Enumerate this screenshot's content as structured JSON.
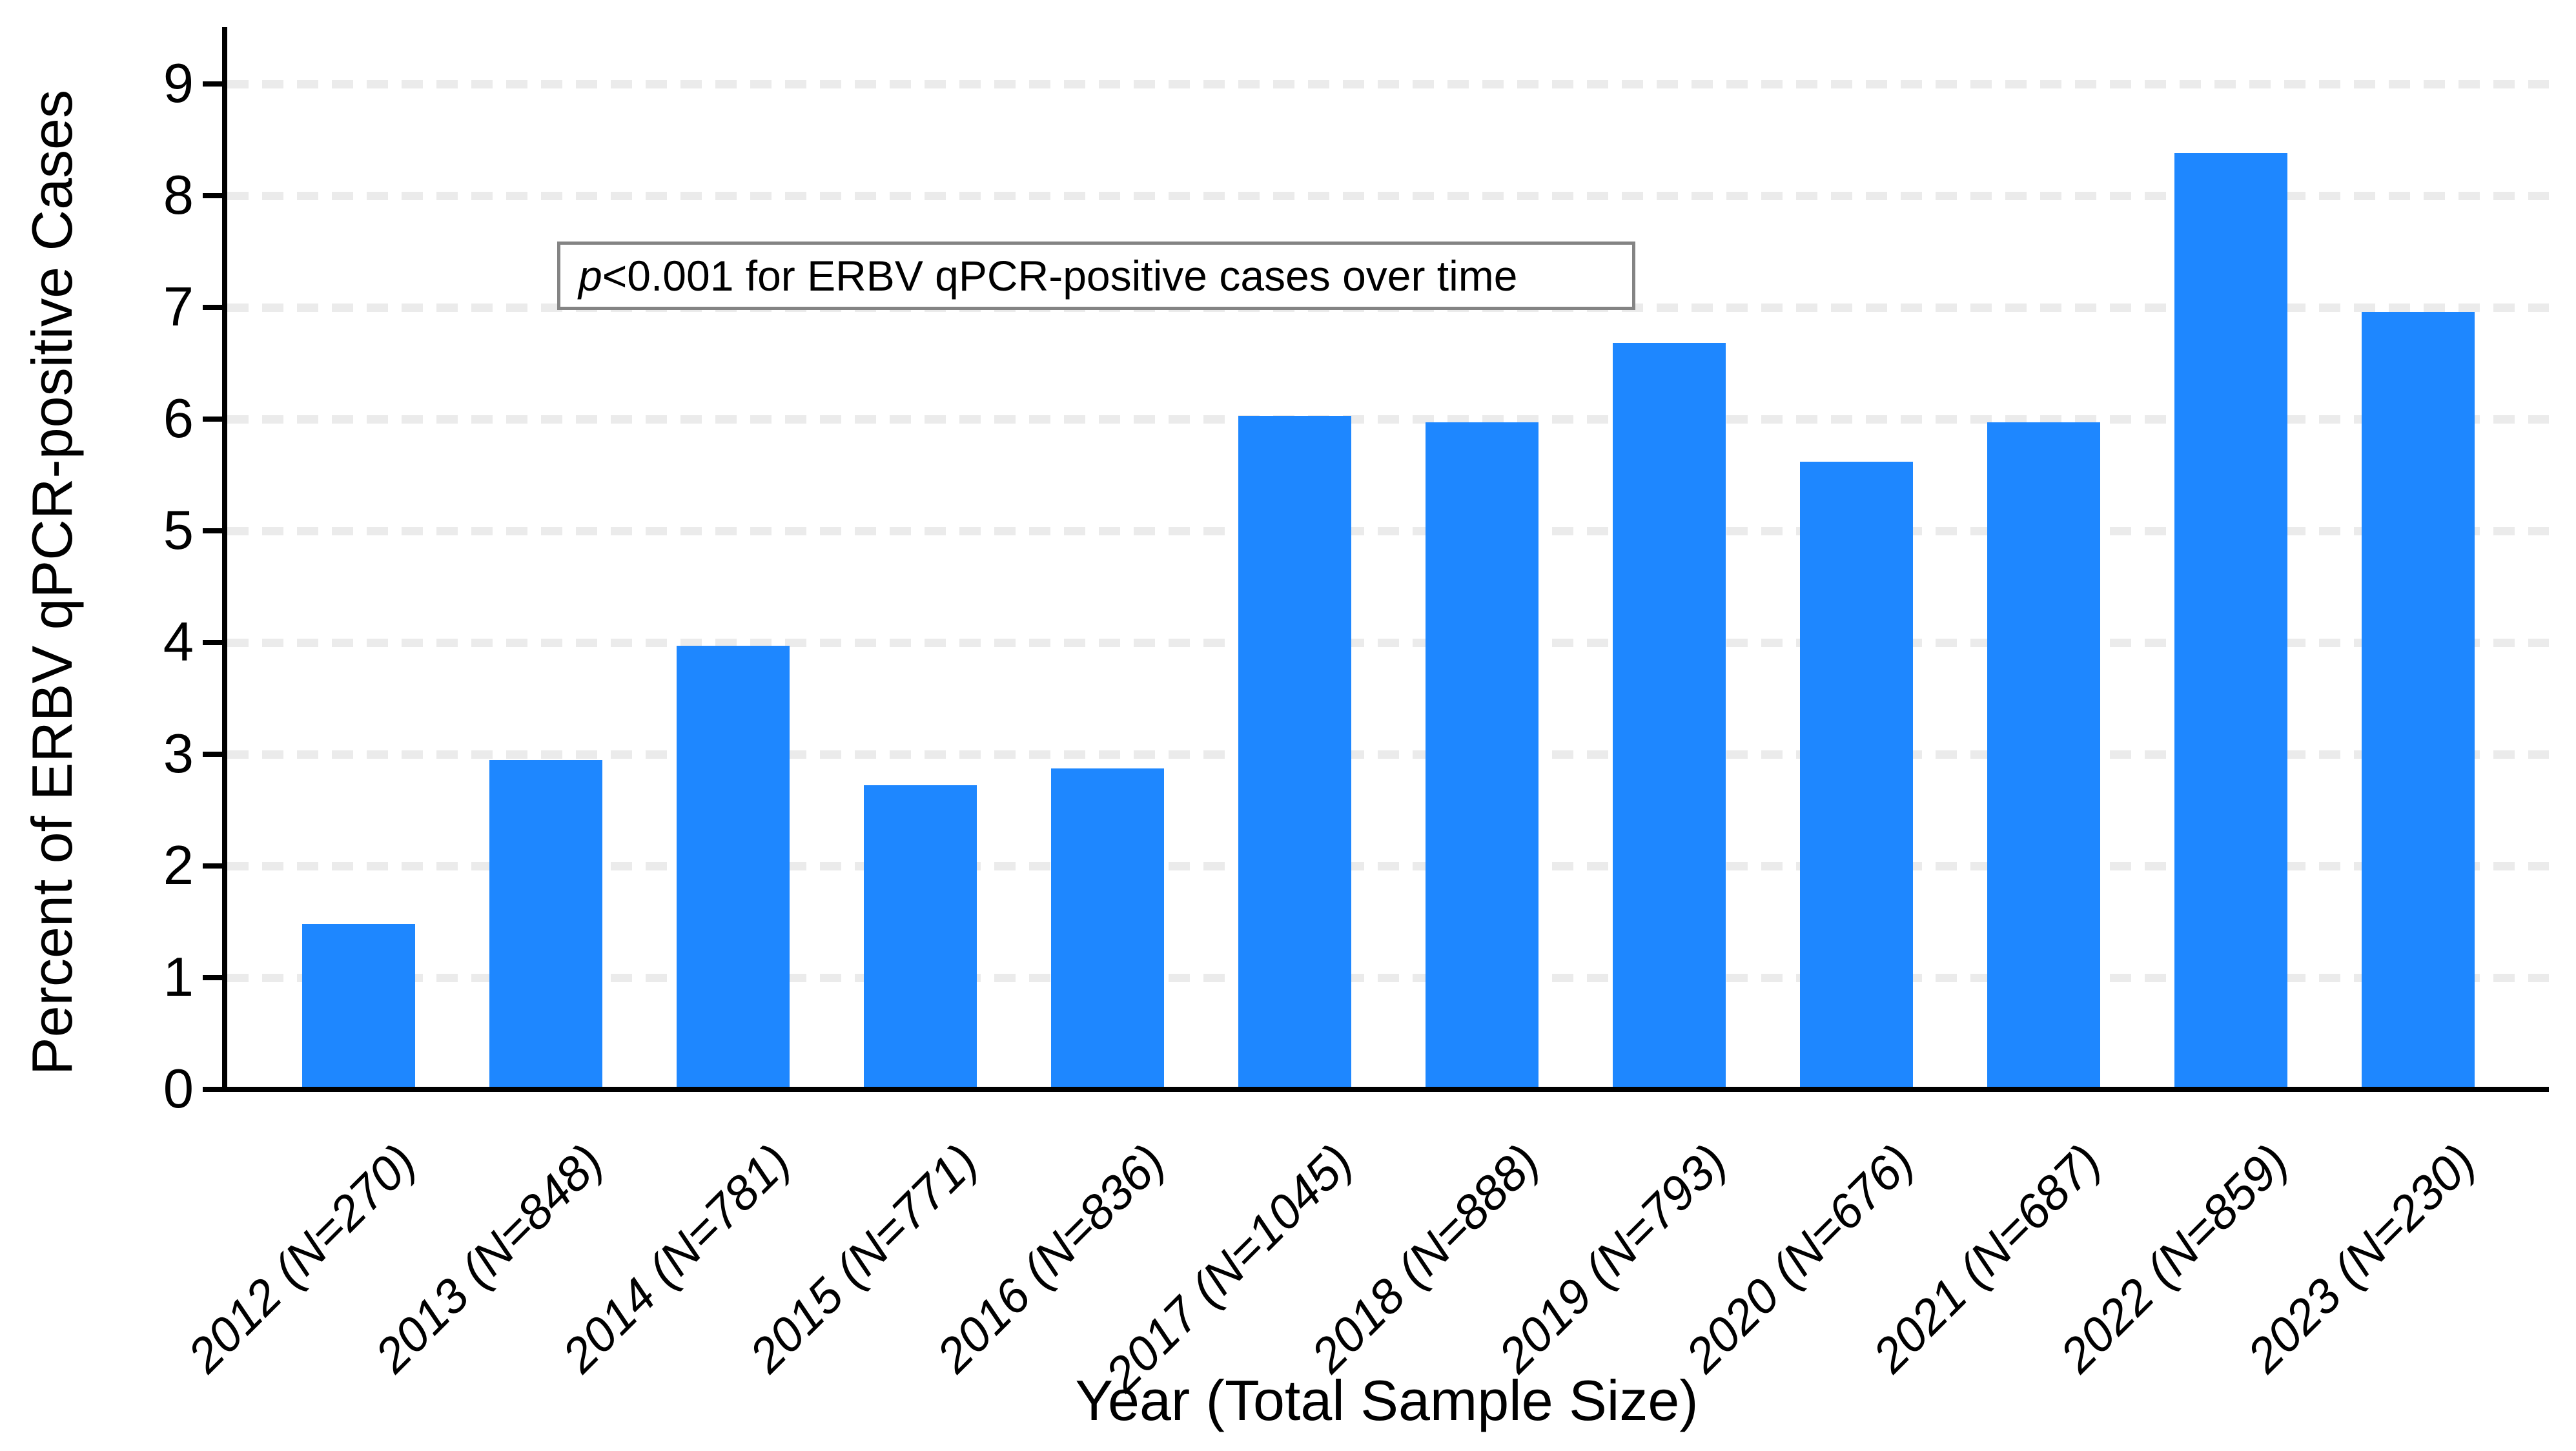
{
  "chart_data": {
    "type": "bar",
    "title": "",
    "xlabel": "Year (Total Sample Size)",
    "ylabel": "Percent of ERBV qPCR-positive Cases",
    "categories": [
      "2012 (N=270)",
      "2013 (N=848)",
      "2014 (N=781)",
      "2015 (N=771)",
      "2016 (N=836)",
      "2017 (N=1045)",
      "2018 (N=888)",
      "2019 (N=793)",
      "2020 (N=676)",
      "2021 (N=687)",
      "2022 (N=859)",
      "2023 (N=230)"
    ],
    "years": [
      2012,
      2013,
      2014,
      2015,
      2016,
      2017,
      2018,
      2019,
      2020,
      2021,
      2022,
      2023
    ],
    "sample_sizes": [
      270,
      848,
      781,
      771,
      836,
      1045,
      888,
      793,
      676,
      687,
      859,
      230
    ],
    "values": [
      1.48,
      2.95,
      3.97,
      2.72,
      2.87,
      6.03,
      5.97,
      6.68,
      5.62,
      5.97,
      8.38,
      6.96
    ],
    "y_ticks": [
      0,
      1,
      2,
      3,
      4,
      5,
      6,
      7,
      8,
      9
    ],
    "ylim": [
      0,
      9.5
    ],
    "grid": true,
    "legend": "none",
    "bar_color": "#1E87FF",
    "gridline_color": "#ebebeb",
    "annotation": {
      "prefix_italic": "p",
      "text": " <0.001 for ERBV qPCR-positive cases over time"
    }
  }
}
